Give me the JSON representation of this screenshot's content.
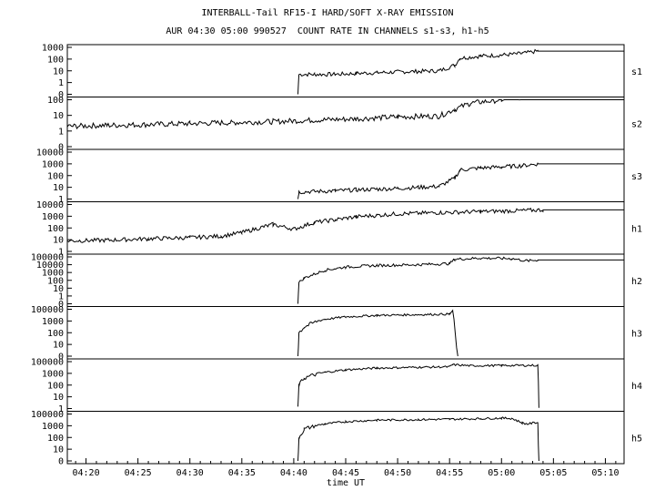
{
  "chart_data": {
    "type": "line",
    "title": "INTERBALL-Tail RF15-I HARD/SOFT X-RAY EMISSION",
    "subtitle": "AUR 04:30 05:00 990527  COUNT RATE IN CHANNELS s1-s3, h1-h5",
    "xlabel": "time UT",
    "x_ticks": [
      "04:20",
      "04:25",
      "04:30",
      "04:35",
      "04:40",
      "04:45",
      "04:50",
      "04:55",
      "05:00",
      "05:05",
      "05:10"
    ],
    "x_tick_minutes": [
      20,
      25,
      30,
      35,
      40,
      45,
      50,
      55,
      60,
      65,
      70
    ],
    "xlim": [
      18.2,
      71.8
    ],
    "grid": false,
    "y_scale": "log",
    "panels": [
      {
        "name": "s1",
        "ytick_labels": [
          "1000",
          "100",
          "10",
          "1",
          "0"
        ],
        "ytick_values": [
          1000,
          100,
          10,
          1,
          0
        ],
        "points": [
          [
            40.4,
            0
          ],
          [
            40.5,
            5
          ],
          [
            42,
            5
          ],
          [
            44,
            5
          ],
          [
            46,
            6
          ],
          [
            48,
            7
          ],
          [
            50,
            8
          ],
          [
            52,
            9
          ],
          [
            54,
            10
          ],
          [
            55.5,
            30
          ],
          [
            56,
            120
          ],
          [
            58,
            180
          ],
          [
            60,
            220
          ],
          [
            62,
            300
          ],
          [
            63.5,
            480
          ],
          [
            71.8,
            480
          ]
        ]
      },
      {
        "name": "s2",
        "ytick_labels": [
          "100",
          "10",
          "1",
          "0"
        ],
        "ytick_values": [
          100,
          10,
          1,
          0
        ],
        "points": [
          [
            18.2,
            2
          ],
          [
            22,
            2.3
          ],
          [
            26,
            2.6
          ],
          [
            30,
            3
          ],
          [
            34,
            3.5
          ],
          [
            38,
            4
          ],
          [
            42,
            5
          ],
          [
            46,
            6
          ],
          [
            50,
            8
          ],
          [
            54,
            9
          ],
          [
            55.5,
            25
          ],
          [
            57,
            60
          ],
          [
            60,
            100
          ],
          [
            62,
            150
          ],
          [
            63.5,
            320
          ],
          [
            71.8,
            320
          ]
        ]
      },
      {
        "name": "s3",
        "ytick_labels": [
          "10000",
          "1000",
          "100",
          "10",
          "1"
        ],
        "ytick_values": [
          10000,
          1000,
          100,
          10,
          1
        ],
        "points": [
          [
            40.4,
            1
          ],
          [
            40.5,
            4
          ],
          [
            44,
            5
          ],
          [
            46,
            6
          ],
          [
            48,
            7
          ],
          [
            50,
            8
          ],
          [
            52,
            10
          ],
          [
            54,
            12
          ],
          [
            55.5,
            60
          ],
          [
            56,
            300
          ],
          [
            58,
            450
          ],
          [
            60,
            550
          ],
          [
            62,
            700
          ],
          [
            63.5,
            1000
          ],
          [
            71.8,
            1000
          ]
        ]
      },
      {
        "name": "h1",
        "ytick_labels": [
          "10000",
          "1000",
          "100",
          "10",
          "1"
        ],
        "ytick_values": [
          10000,
          1000,
          100,
          10,
          1
        ],
        "points": [
          [
            18.2,
            8
          ],
          [
            22,
            9
          ],
          [
            26,
            12
          ],
          [
            30,
            15
          ],
          [
            33,
            20
          ],
          [
            35,
            40
          ],
          [
            37,
            120
          ],
          [
            38,
            200
          ],
          [
            40,
            80
          ],
          [
            42,
            300
          ],
          [
            44,
            500
          ],
          [
            46,
            900
          ],
          [
            48,
            1200
          ],
          [
            50,
            1600
          ],
          [
            54,
            2000
          ],
          [
            58,
            2500
          ],
          [
            62,
            3000
          ],
          [
            64,
            3500
          ],
          [
            71.8,
            3500
          ]
        ]
      },
      {
        "name": "h2",
        "ytick_labels": [
          "100000",
          "10000",
          "1000",
          "100",
          "10",
          "1",
          "0"
        ],
        "ytick_values": [
          100000,
          10000,
          1000,
          100,
          10,
          1,
          0
        ],
        "points": [
          [
            40.4,
            0
          ],
          [
            40.5,
            50
          ],
          [
            41,
            200
          ],
          [
            43,
            2000
          ],
          [
            45,
            5000
          ],
          [
            48,
            8000
          ],
          [
            52,
            10000
          ],
          [
            55,
            14000
          ],
          [
            55.5,
            50000
          ],
          [
            58,
            70000
          ],
          [
            61,
            60000
          ],
          [
            62.5,
            30000
          ],
          [
            63.5,
            40000
          ],
          [
            71.8,
            40000
          ]
        ]
      },
      {
        "name": "h3",
        "ytick_labels": [
          "100000",
          "1000",
          "100",
          "10",
          "0"
        ],
        "ytick_values": [
          100000,
          1000,
          100,
          10,
          0
        ],
        "points": [
          [
            40.4,
            0
          ],
          [
            40.5,
            100
          ],
          [
            41,
            300
          ],
          [
            43,
            2000
          ],
          [
            45,
            5000
          ],
          [
            48,
            9000
          ],
          [
            52,
            12000
          ],
          [
            55,
            15000
          ],
          [
            55.3,
            60000
          ],
          [
            55.8,
            0
          ]
        ]
      },
      {
        "name": "h4",
        "ytick_labels": [
          "100000",
          "1000",
          "100",
          "10",
          "1"
        ],
        "ytick_values": [
          100000,
          1000,
          100,
          10,
          1
        ],
        "points": [
          [
            40.4,
            1
          ],
          [
            40.5,
            100
          ],
          [
            41,
            400
          ],
          [
            43,
            1500
          ],
          [
            45,
            4000
          ],
          [
            48,
            8000
          ],
          [
            52,
            11000
          ],
          [
            55,
            13000
          ],
          [
            55.3,
            30000
          ],
          [
            57,
            20000
          ],
          [
            60,
            22000
          ],
          [
            63.5,
            23000
          ],
          [
            63.6,
            1
          ]
        ]
      },
      {
        "name": "h5",
        "ytick_labels": [
          "100000",
          "1000",
          "100",
          "10",
          "0"
        ],
        "ytick_values": [
          100000,
          1000,
          100,
          10,
          0
        ],
        "points": [
          [
            40.4,
            0
          ],
          [
            40.5,
            100
          ],
          [
            41,
            500
          ],
          [
            43,
            2000
          ],
          [
            45,
            5000
          ],
          [
            48,
            9000
          ],
          [
            52,
            11000
          ],
          [
            55,
            13000
          ],
          [
            58,
            16000
          ],
          [
            60,
            20000
          ],
          [
            61,
            18000
          ],
          [
            62,
            3000
          ],
          [
            62.5,
            2000
          ],
          [
            63.5,
            4000
          ],
          [
            63.6,
            0
          ]
        ]
      }
    ]
  }
}
